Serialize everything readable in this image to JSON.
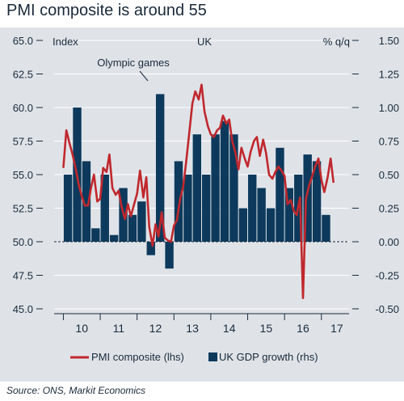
{
  "title": "PMI composite is around 55",
  "source": "Source: ONS, Markit Economics",
  "colors": {
    "background": "#dfe3e8",
    "bars": "#0d3a5c",
    "line": "#c0282d",
    "text": "#1a2a3a",
    "grid": "#ffffff"
  },
  "chart_data": {
    "type": "bar+line",
    "title": "PMI composite is around 55",
    "left_axis_label": "Index",
    "center_label": "UK",
    "right_axis_label": "% q/q",
    "left_ticks": [
      "65.0",
      "62.5",
      "60.0",
      "57.5",
      "55.0",
      "52.5",
      "50.0",
      "47.5",
      "45.0"
    ],
    "right_ticks": [
      "1.50",
      "1.25",
      "1.00",
      "0.75",
      "0.50",
      "0.25",
      "0.00",
      "-0.25",
      "-0.50"
    ],
    "ylim_left": [
      45,
      65
    ],
    "ylim_right": [
      -0.5,
      1.5
    ],
    "x_ticks": [
      "10",
      "11",
      "12",
      "13",
      "14",
      "15",
      "16",
      "17"
    ],
    "x_range_years": [
      2009.75,
      2017.75
    ],
    "annotation": {
      "text": "Olympic games",
      "points_to": "2012 Q3 GDP bar"
    },
    "legend": {
      "position": "bottom",
      "entries": [
        "PMI composite (lhs)",
        "UK GDP growth (rhs)"
      ]
    },
    "grid": true,
    "series": [
      {
        "name": "UK GDP growth (rhs)",
        "axis": "right",
        "type": "bar",
        "quarters": [
          "2010Q1",
          "2010Q2",
          "2010Q3",
          "2010Q4",
          "2011Q1",
          "2011Q2",
          "2011Q3",
          "2011Q4",
          "2012Q1",
          "2012Q2",
          "2012Q3",
          "2012Q4",
          "2013Q1",
          "2013Q2",
          "2013Q3",
          "2013Q4",
          "2014Q1",
          "2014Q2",
          "2014Q3",
          "2014Q4",
          "2015Q1",
          "2015Q2",
          "2015Q3",
          "2015Q4",
          "2016Q1",
          "2016Q2",
          "2016Q3",
          "2016Q4",
          "2017Q1"
        ],
        "values": [
          0.5,
          1.0,
          0.6,
          0.1,
          0.5,
          0.05,
          0.4,
          0.2,
          0.3,
          -0.1,
          1.1,
          -0.2,
          0.6,
          0.5,
          0.8,
          0.5,
          0.8,
          0.9,
          0.8,
          0.25,
          0.5,
          0.4,
          0.25,
          0.7,
          0.4,
          0.5,
          0.65,
          0.6,
          0.2
        ]
      },
      {
        "name": "PMI composite (lhs)",
        "axis": "left",
        "type": "line",
        "points": [
          [
            2010.0,
            55.5
          ],
          [
            2010.08,
            58.3
          ],
          [
            2010.17,
            57.3
          ],
          [
            2010.25,
            56.5
          ],
          [
            2010.33,
            55.5
          ],
          [
            2010.42,
            54.2
          ],
          [
            2010.5,
            53.4
          ],
          [
            2010.58,
            52.7
          ],
          [
            2010.67,
            52.7
          ],
          [
            2010.75,
            54.0
          ],
          [
            2010.83,
            55.0
          ],
          [
            2010.92,
            53.0
          ],
          [
            2011.0,
            53.2
          ],
          [
            2011.08,
            55.5
          ],
          [
            2011.17,
            55.2
          ],
          [
            2011.25,
            56.5
          ],
          [
            2011.33,
            54.0
          ],
          [
            2011.42,
            53.5
          ],
          [
            2011.5,
            53.8
          ],
          [
            2011.58,
            52.6
          ],
          [
            2011.67,
            51.7
          ],
          [
            2011.75,
            52.8
          ],
          [
            2011.83,
            51.9
          ],
          [
            2011.92,
            52.8
          ],
          [
            2012.0,
            53.6
          ],
          [
            2012.08,
            55.3
          ],
          [
            2012.17,
            53.3
          ],
          [
            2012.25,
            54.8
          ],
          [
            2012.33,
            51.1
          ],
          [
            2012.42,
            49.7
          ],
          [
            2012.5,
            51.3
          ],
          [
            2012.58,
            50.4
          ],
          [
            2012.67,
            52.2
          ],
          [
            2012.75,
            50.3
          ],
          [
            2012.83,
            50.1
          ],
          [
            2012.92,
            50.0
          ],
          [
            2013.0,
            51.2
          ],
          [
            2013.08,
            51.6
          ],
          [
            2013.17,
            53.2
          ],
          [
            2013.25,
            54.1
          ],
          [
            2013.33,
            55.9
          ],
          [
            2013.42,
            58.2
          ],
          [
            2013.5,
            60.3
          ],
          [
            2013.58,
            61.2
          ],
          [
            2013.67,
            60.6
          ],
          [
            2013.75,
            61.7
          ],
          [
            2013.83,
            59.7
          ],
          [
            2013.92,
            58.6
          ],
          [
            2014.0,
            58.0
          ],
          [
            2014.08,
            57.8
          ],
          [
            2014.17,
            58.3
          ],
          [
            2014.25,
            58.5
          ],
          [
            2014.33,
            59.4
          ],
          [
            2014.42,
            58.8
          ],
          [
            2014.5,
            59.1
          ],
          [
            2014.58,
            57.5
          ],
          [
            2014.67,
            56.6
          ],
          [
            2014.75,
            55.4
          ],
          [
            2014.83,
            57.0
          ],
          [
            2014.92,
            56.2
          ],
          [
            2015.0,
            55.6
          ],
          [
            2015.08,
            56.7
          ],
          [
            2015.17,
            57.5
          ],
          [
            2015.25,
            57.8
          ],
          [
            2015.33,
            56.4
          ],
          [
            2015.42,
            57.6
          ],
          [
            2015.5,
            56.6
          ],
          [
            2015.58,
            55.0
          ],
          [
            2015.67,
            54.7
          ],
          [
            2015.75,
            55.2
          ],
          [
            2015.83,
            55.6
          ],
          [
            2015.92,
            55.3
          ],
          [
            2016.0,
            54.9
          ],
          [
            2016.08,
            52.8
          ],
          [
            2016.17,
            53.1
          ],
          [
            2016.25,
            52.3
          ],
          [
            2016.33,
            52.0
          ],
          [
            2016.42,
            53.3
          ],
          [
            2016.5,
            45.8
          ],
          [
            2016.58,
            53.2
          ],
          [
            2016.67,
            54.2
          ],
          [
            2016.75,
            54.9
          ],
          [
            2016.83,
            55.6
          ],
          [
            2016.92,
            56.2
          ],
          [
            2017.0,
            54.6
          ],
          [
            2017.08,
            53.7
          ],
          [
            2017.17,
            54.8
          ],
          [
            2017.25,
            56.2
          ],
          [
            2017.33,
            54.4
          ]
        ]
      }
    ]
  }
}
